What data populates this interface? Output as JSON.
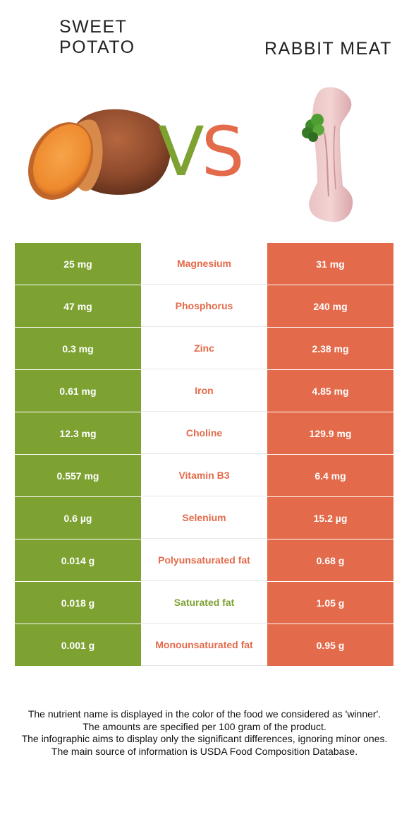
{
  "header": {
    "left_title_line1": "SWEET",
    "left_title_line2": "POTATO",
    "right_title": "RABBIT MEAT",
    "vs_v": "V",
    "vs_s": "S"
  },
  "colors": {
    "left_food": "#7da232",
    "right_food": "#e36a4a"
  },
  "rows": [
    {
      "nutrient": "Magnesium",
      "left": "25 mg",
      "right": "31 mg",
      "winner": "right"
    },
    {
      "nutrient": "Phosphorus",
      "left": "47 mg",
      "right": "240 mg",
      "winner": "right"
    },
    {
      "nutrient": "Zinc",
      "left": "0.3 mg",
      "right": "2.38 mg",
      "winner": "right"
    },
    {
      "nutrient": "Iron",
      "left": "0.61 mg",
      "right": "4.85 mg",
      "winner": "right"
    },
    {
      "nutrient": "Choline",
      "left": "12.3 mg",
      "right": "129.9 mg",
      "winner": "right"
    },
    {
      "nutrient": "Vitamin B3",
      "left": "0.557 mg",
      "right": "6.4 mg",
      "winner": "right"
    },
    {
      "nutrient": "Selenium",
      "left": "0.6 µg",
      "right": "15.2 µg",
      "winner": "right"
    },
    {
      "nutrient": "Polyunsaturated fat",
      "left": "0.014 g",
      "right": "0.68 g",
      "winner": "right"
    },
    {
      "nutrient": "Saturated fat",
      "left": "0.018 g",
      "right": "1.05 g",
      "winner": "left"
    },
    {
      "nutrient": "Monounsaturated fat",
      "left": "0.001 g",
      "right": "0.95 g",
      "winner": "right"
    }
  ],
  "footnote": {
    "line1": "The nutrient name is displayed in the color of the food we considered as 'winner'.",
    "line2": "The amounts are specified per 100 gram of the product.",
    "line3": "The infographic aims to display only the significant differences, ignoring minor ones.",
    "line4": "The main source of information is USDA Food Composition Database."
  }
}
